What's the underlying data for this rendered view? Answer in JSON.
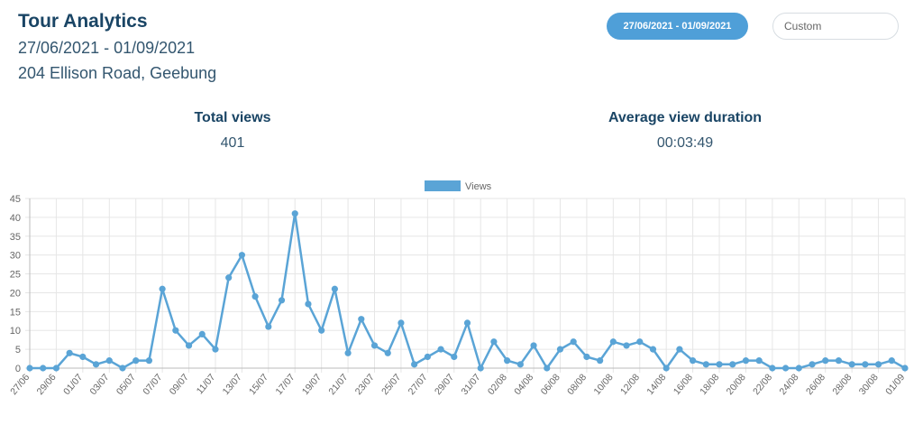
{
  "header": {
    "title": "Tour Analytics",
    "date_range": "27/06/2021 - 01/09/2021",
    "address": "204 Ellison Road, Geebung"
  },
  "controls": {
    "date_range_button": "27/06/2021 - 01/09/2021",
    "custom_placeholder": "Custom"
  },
  "stats": {
    "total_views_label": "Total views",
    "total_views_value": "401",
    "avg_duration_label": "Average view duration",
    "avg_duration_value": "00:03:49"
  },
  "colors": {
    "accent": "#4f9fd8",
    "line": "#5aa4d6",
    "grid": "#e6e6e6",
    "title": "#1a4565"
  },
  "chart_data": {
    "type": "line",
    "legend_position": "top-center",
    "grid": true,
    "ylim": [
      0,
      45
    ],
    "yticks": [
      0,
      5,
      10,
      15,
      20,
      25,
      30,
      35,
      40,
      45
    ],
    "x_labels_shown": [
      "27/06",
      "29/06",
      "01/07",
      "03/07",
      "05/07",
      "07/07",
      "09/07",
      "11/07",
      "13/07",
      "15/07",
      "17/07",
      "19/07",
      "21/07",
      "23/07",
      "25/07",
      "27/07",
      "29/07",
      "31/07",
      "02/08",
      "04/08",
      "06/08",
      "08/08",
      "10/08",
      "12/08",
      "14/08",
      "16/08",
      "18/08",
      "20/08",
      "22/08",
      "24/08",
      "26/08",
      "28/08",
      "30/08",
      "01/09"
    ],
    "series": [
      {
        "name": "Views",
        "values": [
          0,
          0,
          0,
          4,
          3,
          1,
          2,
          0,
          2,
          2,
          21,
          10,
          6,
          9,
          5,
          24,
          30,
          19,
          11,
          18,
          41,
          17,
          10,
          21,
          4,
          13,
          6,
          4,
          12,
          1,
          3,
          5,
          3,
          12,
          0,
          7,
          2,
          1,
          6,
          0,
          5,
          7,
          3,
          2,
          7,
          6,
          7,
          5,
          0,
          5,
          2,
          1,
          1,
          1,
          2,
          2,
          0,
          0,
          0,
          1,
          2,
          2,
          1,
          1,
          1,
          2,
          0
        ]
      }
    ]
  }
}
